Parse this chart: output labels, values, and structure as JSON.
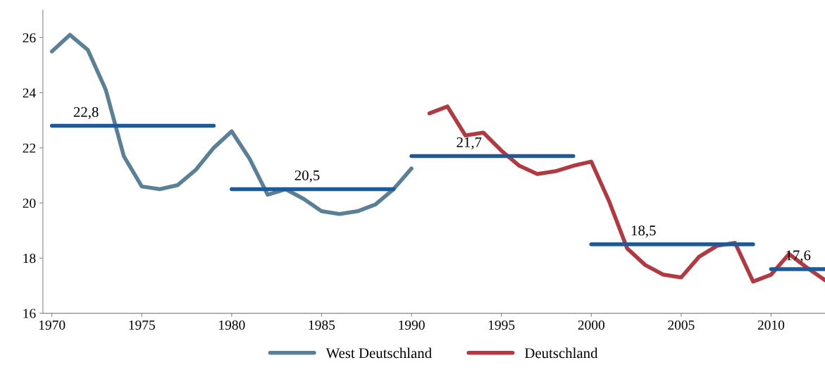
{
  "chart_data": {
    "type": "line",
    "xlim": [
      1969.5,
      2013
    ],
    "xticks": [
      1970,
      1975,
      1980,
      1985,
      1990,
      1995,
      2000,
      2005,
      2010
    ],
    "ylim": [
      16,
      27
    ],
    "yticks": [
      16,
      18,
      20,
      22,
      24,
      26
    ],
    "grid": false,
    "legend": "bottom",
    "marker": "none",
    "line_style": "solid",
    "series": [
      {
        "name": "West Deutschland",
        "color": "#5b7f95",
        "x": [
          1970,
          1971,
          1972,
          1973,
          1974,
          1975,
          1976,
          1977,
          1978,
          1979,
          1980,
          1981,
          1982,
          1983,
          1984,
          1985,
          1986,
          1987,
          1988,
          1989,
          1990
        ],
        "values": [
          25.5,
          26.1,
          25.55,
          24.1,
          21.7,
          20.6,
          20.5,
          20.65,
          21.2,
          22.0,
          22.6,
          21.6,
          20.3,
          20.5,
          20.15,
          19.7,
          19.6,
          19.7,
          19.95,
          20.5,
          21.25
        ]
      },
      {
        "name": "Deutschland",
        "color": "#b03a42",
        "x": [
          1991,
          1992,
          1993,
          1994,
          1995,
          1996,
          1997,
          1998,
          1999,
          2000,
          2001,
          2002,
          2003,
          2004,
          2005,
          2006,
          2007,
          2008,
          2009,
          2010,
          2011,
          2012,
          2013
        ],
        "values": [
          23.25,
          23.5,
          22.45,
          22.55,
          21.9,
          21.35,
          21.05,
          21.15,
          21.35,
          21.5,
          20.05,
          18.35,
          17.75,
          17.4,
          17.3,
          18.05,
          18.45,
          18.55,
          17.15,
          17.4,
          18.15,
          17.65,
          17.2
        ]
      },
      {
        "color": "#1f5a96",
        "x": [
          1970,
          1979
        ],
        "values": [
          22.8,
          22.8
        ]
      },
      {
        "color": "#1f5a96",
        "x": [
          1980,
          1989
        ],
        "values": [
          20.5,
          20.5
        ]
      },
      {
        "color": "#1f5a96",
        "x": [
          1990,
          1999
        ],
        "values": [
          21.7,
          21.7
        ]
      },
      {
        "color": "#1f5a96",
        "x": [
          2000,
          2009
        ],
        "values": [
          18.5,
          18.5
        ]
      },
      {
        "color": "#1f5a96",
        "x": [
          2010,
          2013
        ],
        "values": [
          17.6,
          17.6
        ]
      }
    ],
    "annotations": [
      {
        "text": "22,8",
        "x": 1971.9,
        "y": 22.8
      },
      {
        "text": "20,5",
        "x": 1984.2,
        "y": 20.5
      },
      {
        "text": "21,7",
        "x": 1993.2,
        "y": 21.7
      },
      {
        "text": "18,5",
        "x": 2002.9,
        "y": 18.5
      },
      {
        "text": "17,6",
        "x": 2011.5,
        "y": 17.6
      }
    ]
  }
}
